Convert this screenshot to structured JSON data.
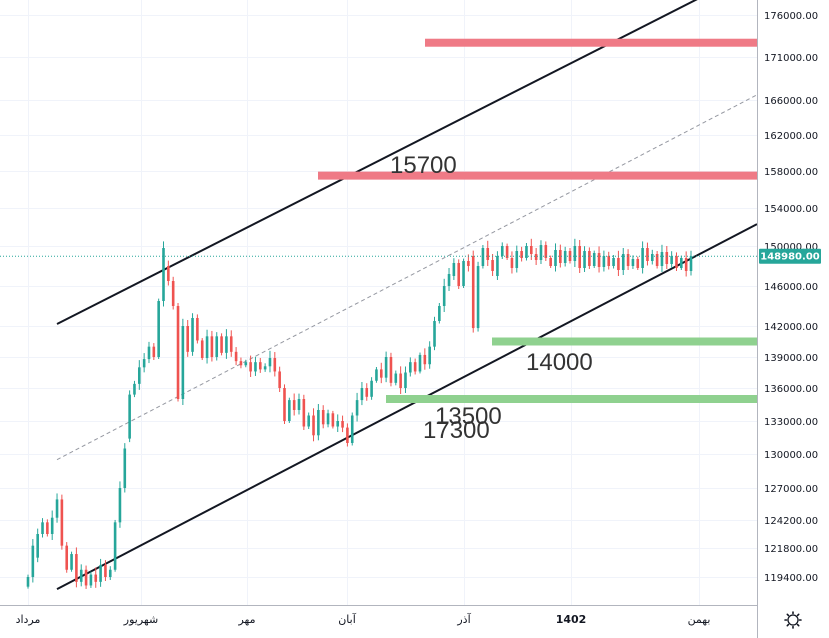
{
  "chart_data": {
    "type": "candlestick",
    "y_axis_ticks": [
      "176000.00",
      "171000.00",
      "166000.00",
      "162000.00",
      "158000.00",
      "154000.00",
      "150000.00",
      "146000.00",
      "142000.00",
      "139000.00",
      "136000.00",
      "133000.00",
      "130000.00",
      "127000.00",
      "124200.00",
      "121800.00",
      "119400.00"
    ],
    "y_axis_tick_values": [
      176000,
      171000,
      166000,
      162000,
      158000,
      154000,
      150000,
      146000,
      142000,
      139000,
      136000,
      133000,
      130000,
      127000,
      124200,
      121800,
      119400
    ],
    "x_axis_ticks": [
      "مرداد",
      "شهریور",
      "مهر",
      "آبان",
      "آذر",
      "1402",
      "بهمن"
    ],
    "x_axis_bold": "1402",
    "last_price": "148980.00",
    "last_price_value": 148980,
    "levels": [
      {
        "label": "17300",
        "value": 172700,
        "color": "#ef7a86"
      },
      {
        "label": "15700",
        "value": 157500,
        "color": "#ef7a86"
      },
      {
        "label": "14000",
        "value": 140500,
        "color": "#8fd18f"
      },
      {
        "label": "13500",
        "value": 135000,
        "color": "#8fd18f"
      }
    ],
    "channel": {
      "upper_start": 142200,
      "upper_end": 181500,
      "lower_start": 118400,
      "lower_end": 152300,
      "mid_start": 129500,
      "mid_end": 166600
    },
    "candles": [
      [
        118600,
        119400
      ],
      [
        119400,
        122000
      ],
      [
        121000,
        123000
      ],
      [
        123000,
        124000
      ],
      [
        124000,
        123000
      ],
      [
        123000,
        124400
      ],
      [
        124400,
        126000
      ],
      [
        126000,
        122000
      ],
      [
        122000,
        120000
      ],
      [
        120000,
        121300
      ],
      [
        121300,
        119000
      ],
      [
        119000,
        120000
      ],
      [
        120000,
        118700
      ],
      [
        118700,
        119600
      ],
      [
        119600,
        119000
      ],
      [
        119000,
        120400
      ],
      [
        120400,
        119400
      ],
      [
        119400,
        120000
      ],
      [
        120000,
        124000
      ],
      [
        124000,
        127000
      ],
      [
        127000,
        130500
      ],
      [
        131400,
        135400
      ],
      [
        135400,
        136400
      ],
      [
        136400,
        138000
      ],
      [
        138000,
        138800
      ],
      [
        138800,
        140000
      ],
      [
        140000,
        139000
      ],
      [
        139000,
        144500
      ],
      [
        144500,
        149800
      ],
      [
        148000,
        146500
      ],
      [
        146500,
        144000
      ],
      [
        144000,
        135000
      ],
      [
        135000,
        142000
      ],
      [
        142000,
        139500
      ],
      [
        139500,
        142800
      ],
      [
        142800,
        140600
      ],
      [
        140600,
        138900
      ],
      [
        138900,
        141000
      ],
      [
        141000,
        139000
      ],
      [
        139000,
        141000
      ],
      [
        141000,
        139400
      ],
      [
        139400,
        141000
      ],
      [
        141000,
        139500
      ],
      [
        139500,
        138600
      ],
      [
        138600,
        138200
      ],
      [
        138200,
        138500
      ],
      [
        138500,
        137600
      ],
      [
        137600,
        138500
      ],
      [
        138500,
        137800
      ],
      [
        137800,
        138100
      ],
      [
        138100,
        138900
      ],
      [
        138900,
        137600
      ],
      [
        137600,
        136000
      ],
      [
        136000,
        133000
      ],
      [
        133000,
        134900
      ],
      [
        134900,
        134000
      ],
      [
        134000,
        135000
      ],
      [
        135000,
        132500
      ],
      [
        132500,
        133500
      ],
      [
        133500,
        131700
      ],
      [
        131700,
        134000
      ],
      [
        134000,
        132700
      ],
      [
        132700,
        133700
      ],
      [
        133700,
        132500
      ],
      [
        132500,
        133000
      ],
      [
        133000,
        132400
      ],
      [
        132400,
        131000
      ],
      [
        131000,
        133500
      ],
      [
        133500,
        134900
      ],
      [
        134900,
        136000
      ],
      [
        136000,
        135200
      ],
      [
        135200,
        136700
      ],
      [
        136700,
        137800
      ],
      [
        137800,
        137000
      ],
      [
        137000,
        139000
      ],
      [
        139000,
        136500
      ],
      [
        136500,
        137400
      ],
      [
        137400,
        136000
      ],
      [
        136000,
        137500
      ],
      [
        137500,
        138500
      ],
      [
        138500,
        137600
      ],
      [
        137600,
        139200
      ],
      [
        139200,
        138300
      ],
      [
        138300,
        140000
      ],
      [
        140000,
        142500
      ],
      [
        142500,
        144000
      ],
      [
        144000,
        146000
      ],
      [
        146000,
        147200
      ],
      [
        147000,
        148300
      ],
      [
        148300,
        146000
      ],
      [
        146000,
        148500
      ],
      [
        148500,
        148000
      ],
      [
        149000,
        141800
      ],
      [
        141800,
        148000
      ],
      [
        148000,
        149800
      ],
      [
        149800,
        148600
      ],
      [
        148600,
        147500
      ],
      [
        147000,
        149000
      ],
      [
        149000,
        150000
      ],
      [
        150000,
        148800
      ],
      [
        148800,
        147800
      ],
      [
        147800,
        149500
      ],
      [
        149500,
        148800
      ],
      [
        148800,
        150000
      ],
      [
        150000,
        149200
      ],
      [
        149200,
        148600
      ],
      [
        148600,
        150100
      ],
      [
        150100,
        148800
      ],
      [
        148800,
        148000
      ],
      [
        148000,
        149600
      ],
      [
        149600,
        148300
      ],
      [
        148300,
        149500
      ],
      [
        149500,
        148500
      ],
      [
        148500,
        150000
      ],
      [
        150000,
        147800
      ],
      [
        147800,
        149500
      ],
      [
        149500,
        148000
      ],
      [
        148000,
        149300
      ],
      [
        149300,
        147900
      ],
      [
        147900,
        149000
      ],
      [
        149000,
        148000
      ],
      [
        148000,
        148800
      ],
      [
        148800,
        147600
      ],
      [
        147600,
        149200
      ],
      [
        149200,
        148000
      ],
      [
        148000,
        148700
      ],
      [
        148700,
        147800
      ],
      [
        147800,
        149800
      ],
      [
        149800,
        148500
      ],
      [
        148500,
        149200
      ],
      [
        149200,
        148000
      ],
      [
        148000,
        149400
      ],
      [
        149400,
        148200
      ],
      [
        148200,
        149000
      ],
      [
        149000,
        147800
      ],
      [
        147800,
        148800
      ],
      [
        148800,
        147500
      ],
      [
        147500,
        148980
      ]
    ]
  }
}
